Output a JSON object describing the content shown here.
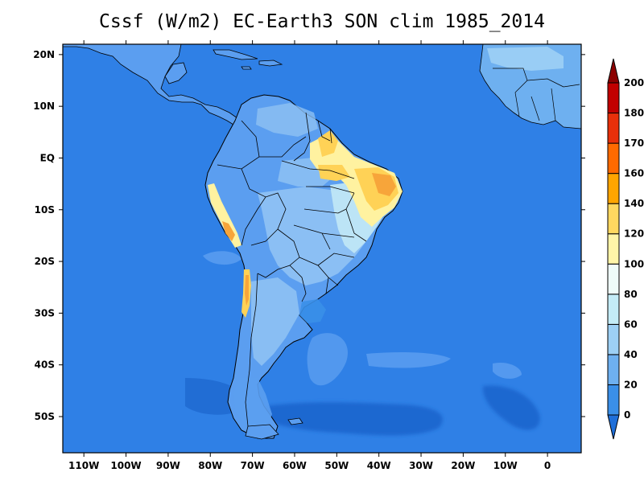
{
  "title": "Cssf (W/m2) EC-Earth3 SON clim 1985_2014",
  "map": {
    "lon_labels": [
      "110W",
      "100W",
      "90W",
      "80W",
      "70W",
      "60W",
      "50W",
      "40W",
      "30W",
      "20W",
      "10W",
      "0"
    ],
    "lat_labels": [
      "20N",
      "10N",
      "EQ",
      "10S",
      "20S",
      "30S",
      "40S",
      "50S"
    ],
    "lon_range": [
      -115,
      8
    ],
    "lat_range": [
      -57,
      22
    ]
  },
  "colorbar": {
    "levels": [
      "0",
      "20",
      "40",
      "60",
      "80",
      "100",
      "120",
      "140",
      "160",
      "170",
      "180",
      "200"
    ],
    "colors": [
      "#1f6fd9",
      "#3a8fe8",
      "#6eb0f0",
      "#9dd0f5",
      "#c4ecf7",
      "#effcf9",
      "#fff5a8",
      "#ffd860",
      "#ffa500",
      "#ff6a00",
      "#e8300a",
      "#c10000",
      "#8c0000"
    ]
  },
  "palette": {
    "ocean": "#2f80e6",
    "land_low": "#5b9ef0",
    "land_mid": "#8ec1f3",
    "land_high": "#bfe6f5",
    "warm_1": "#fff2a0",
    "warm_2": "#ffd256",
    "warm_3": "#f7a53a",
    "dark_ocean": "#1e68d0",
    "border": "#000000"
  }
}
